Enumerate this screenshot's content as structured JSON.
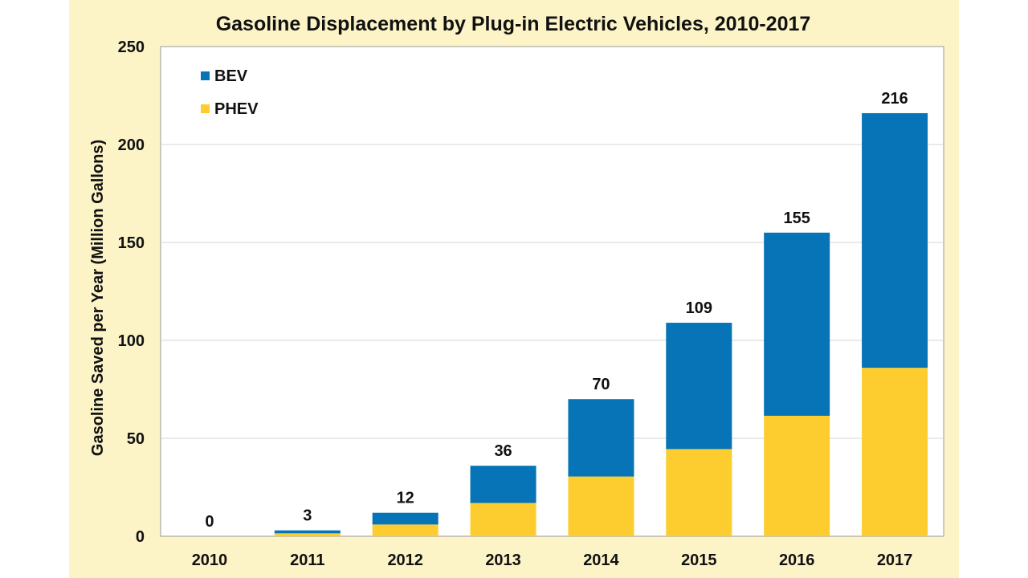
{
  "chart_data": {
    "type": "bar",
    "stacked": true,
    "title": "Gasoline Displacement by Plug-in Electric Vehicles, 2010-2017",
    "xlabel": "",
    "ylabel": "Gasoline Saved per Year (Million Gallons)",
    "ylim": [
      0,
      250
    ],
    "yticks": [
      "0",
      "50",
      "100",
      "150",
      "200",
      "250"
    ],
    "categories": [
      "2010",
      "2011",
      "2012",
      "2013",
      "2014",
      "2015",
      "2016",
      "2017"
    ],
    "series": [
      {
        "name": "PHEV",
        "color": "#fdcd2f",
        "values": [
          0,
          1.5,
          6,
          17,
          30.5,
          44.5,
          61.5,
          86
        ]
      },
      {
        "name": "BEV",
        "color": "#0674b6",
        "values": [
          0,
          1.5,
          6,
          19,
          39.5,
          64.5,
          93.5,
          130
        ]
      }
    ],
    "totals": [
      "0",
      "3",
      "12",
      "36",
      "70",
      "109",
      "155",
      "216"
    ],
    "legend": {
      "position": "top-left",
      "entries": [
        "BEV",
        "PHEV"
      ]
    },
    "grid": true
  }
}
